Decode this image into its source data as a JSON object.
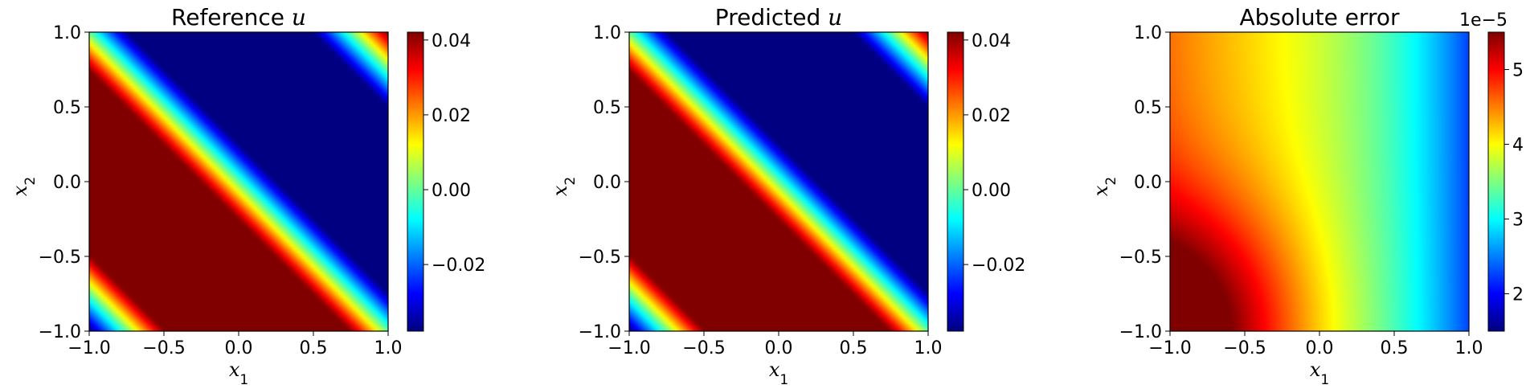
{
  "chart_data": [
    {
      "type": "heatmap",
      "title": "Reference u",
      "title_parts": [
        "Reference ",
        "u"
      ],
      "xlabel": "x1",
      "ylabel": "x2",
      "xlim": [
        -1.0,
        1.0
      ],
      "ylim": [
        -1.0,
        1.0
      ],
      "x_ticks": [
        "−1.0",
        "−0.5",
        "0.0",
        "0.5",
        "1.0"
      ],
      "y_ticks": [
        "−1.0",
        "−0.5",
        "0.0",
        "0.5",
        "1.0"
      ],
      "colormap": "jet",
      "field": "sinusoid of x1+x2, min at (-1,-1), max at (1,1)",
      "value_range": [
        -0.0378,
        0.0421
      ],
      "colorbar_ticks": [
        "−0.02",
        "0.00",
        "0.02",
        "0.04"
      ],
      "colorbar_tick_values": [
        -0.02,
        0.0,
        0.02,
        0.04
      ],
      "colorbar_offset": ""
    },
    {
      "type": "heatmap",
      "title": "Predicted u",
      "title_parts": [
        "Predicted ",
        "u"
      ],
      "xlabel": "x1",
      "ylabel": "x2",
      "xlim": [
        -1.0,
        1.0
      ],
      "ylim": [
        -1.0,
        1.0
      ],
      "x_ticks": [
        "−1.0",
        "−0.5",
        "0.0",
        "0.5",
        "1.0"
      ],
      "y_ticks": [
        "−1.0",
        "−0.5",
        "0.0",
        "0.5",
        "1.0"
      ],
      "colormap": "jet",
      "field": "sinusoid of x1+x2, min at (-1,-1), max at (1,1)",
      "value_range": [
        -0.0378,
        0.0421
      ],
      "colorbar_ticks": [
        "−0.02",
        "0.00",
        "0.02",
        "0.04"
      ],
      "colorbar_tick_values": [
        -0.02,
        0.0,
        0.02,
        0.04
      ],
      "colorbar_offset": ""
    },
    {
      "type": "heatmap",
      "title": "Absolute error",
      "title_parts": [
        "Absolute error",
        ""
      ],
      "xlabel": "x1",
      "ylabel": "x2",
      "xlim": [
        -1.0,
        1.0
      ],
      "ylim": [
        -1.0,
        1.0
      ],
      "x_ticks": [
        "−1.0",
        "−0.5",
        "0.0",
        "0.5",
        "1.0"
      ],
      "y_ticks": [
        "−1.0",
        "−0.5",
        "0.0",
        "0.5",
        "1.0"
      ],
      "colormap": "jet",
      "field": "largest near (-1,-1) about 5.4e-5, about 3.8e-5 across the upper left, decreasing to the right to about 1.6e-5 at x1 = 1",
      "value_range": [
        1.5e-05,
        5.5e-05
      ],
      "colorbar_ticks": [
        "2",
        "3",
        "4",
        "5"
      ],
      "colorbar_tick_values": [
        2,
        3,
        4,
        5
      ],
      "colorbar_offset": "1e−5"
    }
  ]
}
